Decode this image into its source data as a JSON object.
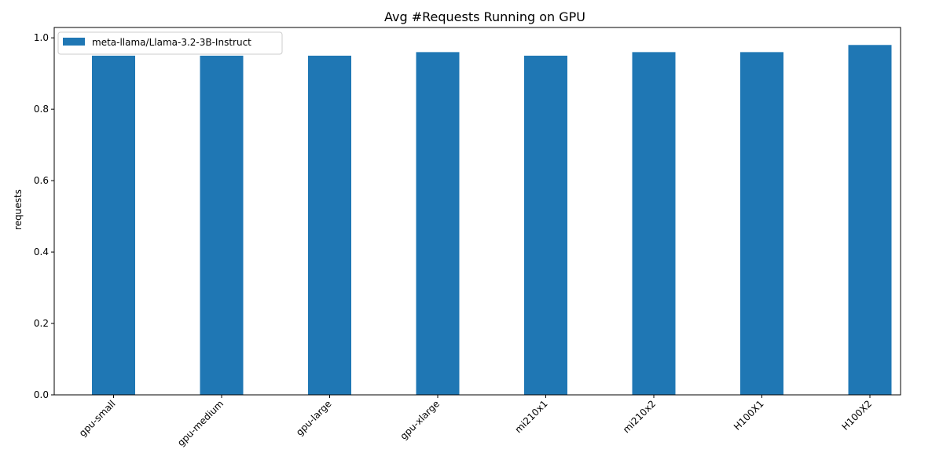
{
  "chart_data": {
    "type": "bar",
    "title": "Avg #Requests Running on GPU",
    "xlabel": "",
    "ylabel": "requests",
    "categories": [
      "gpu-small",
      "gpu-medium",
      "gpu-large",
      "gpu-xlarge",
      "mi210x1",
      "mi210x2",
      "H100X1",
      "H100X2"
    ],
    "series": [
      {
        "name": "meta-llama/Llama-3.2-3B-Instruct",
        "values": [
          0.95,
          0.95,
          0.95,
          0.96,
          0.95,
          0.96,
          0.96,
          0.98
        ],
        "color": "#1f77b4"
      }
    ],
    "ylim": [
      0,
      1.029
    ],
    "yticks": [
      "0.0",
      "0.2",
      "0.4",
      "0.6",
      "0.8",
      "1.0"
    ],
    "grid": false,
    "legend_position": "top-left"
  }
}
